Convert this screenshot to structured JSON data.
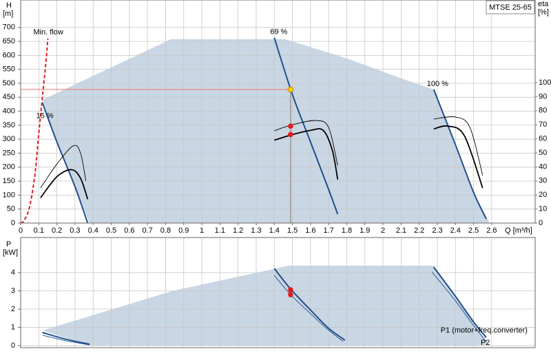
{
  "chart_data": [
    {
      "type": "line",
      "title": "MTSE 25-65",
      "ylabel": [
        "H",
        "[m]"
      ],
      "y2label": [
        "eta",
        "[%]"
      ],
      "xlabel": "Q [m³/h]",
      "xlim": [
        0,
        2.84
      ],
      "ylim": [
        0,
        798
      ],
      "y2lim": [
        0,
        158.8
      ],
      "xticks": [
        0,
        0.1,
        0.2,
        0.3,
        0.4,
        0.5,
        0.6,
        0.7,
        0.8,
        0.9,
        1,
        1.1,
        1.2,
        1.3,
        1.4,
        1.5,
        1.6,
        1.7,
        1.8,
        1.9,
        2,
        2.1,
        2.2,
        2.3,
        2.4,
        2.5,
        2.6
      ],
      "yticks": [
        0,
        50,
        100,
        150,
        200,
        250,
        300,
        350,
        400,
        450,
        500,
        550,
        600,
        650,
        700
      ],
      "y2ticks": [
        0,
        10,
        20,
        30,
        40,
        50,
        60,
        70,
        80,
        90,
        100
      ],
      "grid": true,
      "series": [
        {
          "kind": "area",
          "color": "#c9d6e3",
          "x": [
            0.12,
            0.83,
            1.46,
            1.8,
            2.09,
            2.28,
            2.4,
            2.5,
            2.59,
            0.38,
            0.3,
            0.2
          ],
          "values": [
            441,
            658,
            658,
            589,
            520,
            478,
            280,
            110,
            0,
            0,
            130,
            290
          ]
        },
        {
          "name": "Min. flow",
          "kind": "dashed-line",
          "color": "#e31a1c",
          "x": [
            0,
            0.02,
            0.05,
            0.08,
            0.1,
            0.12,
            0.14,
            0.15
          ],
          "values": [
            0,
            10,
            60,
            180,
            320,
            450,
            580,
            660
          ]
        },
        {
          "name": "15 %",
          "kind": "line",
          "color": "#1f4e8c",
          "x": [
            0.12,
            0.2,
            0.3,
            0.37
          ],
          "values": [
            430,
            290,
            130,
            0
          ]
        },
        {
          "name": "69 %",
          "kind": "line",
          "color": "#1f4e8c",
          "x": [
            1.4,
            1.5,
            1.6,
            1.7,
            1.75
          ],
          "values": [
            663,
            460,
            290,
            120,
            32
          ]
        },
        {
          "name": "100 %",
          "kind": "line",
          "color": "#1f4e8c",
          "x": [
            2.28,
            2.4,
            2.5,
            2.57
          ],
          "values": [
            478,
            280,
            110,
            15
          ]
        },
        {
          "kind": "thin-line",
          "color": "#000000",
          "axis": "y2",
          "x": [
            0.11,
            0.2,
            0.29,
            0.33,
            0.36
          ],
          "values": [
            25,
            42,
            55,
            50,
            30
          ]
        },
        {
          "kind": "thick-line",
          "color": "#000000",
          "axis": "y2",
          "x": [
            0.11,
            0.2,
            0.28,
            0.33,
            0.37
          ],
          "values": [
            18,
            33,
            38,
            32,
            17
          ]
        },
        {
          "kind": "thin-line",
          "color": "#000000",
          "axis": "y2",
          "x": [
            1.4,
            1.5,
            1.63,
            1.7,
            1.75
          ],
          "values": [
            65.7,
            70,
            73,
            68,
            41
          ]
        },
        {
          "kind": "thick-line",
          "color": "#000000",
          "axis": "y2",
          "x": [
            1.4,
            1.5,
            1.6,
            1.67,
            1.72,
            1.75
          ],
          "values": [
            59,
            63,
            66,
            66,
            52,
            31
          ]
        },
        {
          "kind": "thin-line",
          "color": "#000000",
          "axis": "y2",
          "x": [
            2.28,
            2.4,
            2.48,
            2.55
          ],
          "values": [
            74,
            75.5,
            68,
            34
          ]
        },
        {
          "kind": "thick-line",
          "color": "#000000",
          "axis": "y2",
          "x": [
            2.28,
            2.36,
            2.45,
            2.55
          ],
          "values": [
            67,
            69,
            62,
            25
          ]
        },
        {
          "kind": "operating-point",
          "color": "#f5d000",
          "x": [
            1.49
          ],
          "values": [
            478
          ]
        },
        {
          "kind": "points",
          "color": "#e31a1c",
          "axis": "y2",
          "x": [
            1.49,
            1.49
          ],
          "values": [
            69,
            63
          ]
        }
      ]
    },
    {
      "type": "line",
      "ylabel": [
        "P",
        "[kW]"
      ],
      "xlim": [
        0,
        2.84
      ],
      "ylim": [
        -0.11,
        5.92
      ],
      "yticks": [
        0,
        1,
        2,
        3,
        4
      ],
      "grid": true,
      "series": [
        {
          "kind": "area",
          "color": "#c9d6e3",
          "x": [
            0.12,
            0.84,
            1.48,
            2.28,
            2.59,
            0.38
          ],
          "values": [
            0.83,
            3.0,
            4.38,
            4.38,
            0,
            0
          ]
        },
        {
          "kind": "line",
          "color": "#1f4e8c",
          "x": [
            0.12,
            0.25,
            0.38
          ],
          "values": [
            0.72,
            0.35,
            0.08
          ]
        },
        {
          "kind": "thin-line",
          "color": "#1f4e8c",
          "x": [
            0.12,
            0.25,
            0.38
          ],
          "values": [
            0.57,
            0.27,
            0.04
          ]
        },
        {
          "kind": "line",
          "color": "#1f4e8c",
          "x": [
            1.4,
            1.49,
            1.6,
            1.7,
            1.79
          ],
          "values": [
            4.23,
            3.1,
            1.95,
            0.95,
            0.3
          ]
        },
        {
          "kind": "thin-line",
          "color": "#1f4e8c",
          "x": [
            1.4,
            1.49,
            1.6,
            1.7,
            1.78
          ],
          "values": [
            3.85,
            2.8,
            1.75,
            0.85,
            0.23
          ]
        },
        {
          "name": "P1 (motor+freq.converter)",
          "kind": "line",
          "color": "#1f4e8c",
          "x": [
            2.28,
            2.4,
            2.5,
            2.57
          ],
          "values": [
            4.3,
            2.7,
            1.3,
            0.45
          ]
        },
        {
          "name": "P2",
          "kind": "thin-line",
          "color": "#1f4e8c",
          "x": [
            2.27,
            2.4,
            2.5,
            2.57
          ],
          "values": [
            4.04,
            2.45,
            1.1,
            0.23
          ]
        },
        {
          "kind": "points",
          "color": "#e31a1c",
          "x": [
            1.49,
            1.49
          ],
          "values": [
            3.06,
            2.79
          ]
        }
      ]
    }
  ]
}
